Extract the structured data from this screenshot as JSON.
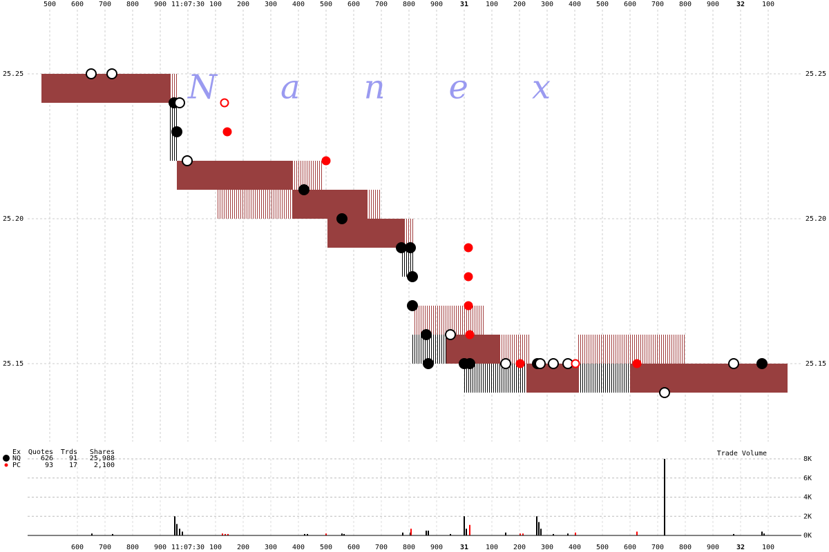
{
  "chart_data": [
    {
      "type": "quotes",
      "watermark": "Nanex",
      "grid": true,
      "xlim": [
        -0.58,
        2.22
      ],
      "ylim": [
        25.12,
        25.27
      ],
      "xticks": [
        {
          "value": -0.5,
          "label": "500"
        },
        {
          "value": -0.4,
          "label": "600"
        },
        {
          "value": -0.3,
          "label": "700"
        },
        {
          "value": -0.2,
          "label": "800"
        },
        {
          "value": -0.1,
          "label": "900"
        },
        {
          "value": 0,
          "label": "11:07:30"
        },
        {
          "value": 0.1,
          "label": "100"
        },
        {
          "value": 0.2,
          "label": "200"
        },
        {
          "value": 0.3,
          "label": "300"
        },
        {
          "value": 0.4,
          "label": "400"
        },
        {
          "value": 0.5,
          "label": "500"
        },
        {
          "value": 0.6,
          "label": "600"
        },
        {
          "value": 0.7,
          "label": "700"
        },
        {
          "value": 0.8,
          "label": "800"
        },
        {
          "value": 0.9,
          "label": "900"
        },
        {
          "value": 1,
          "label": "31"
        },
        {
          "value": 1.1,
          "label": "100"
        },
        {
          "value": 1.2,
          "label": "200"
        },
        {
          "value": 1.3,
          "label": "300"
        },
        {
          "value": 1.4,
          "label": "400"
        },
        {
          "value": 1.5,
          "label": "500"
        },
        {
          "value": 1.6,
          "label": "600"
        },
        {
          "value": 1.7,
          "label": "700"
        },
        {
          "value": 1.8,
          "label": "800"
        },
        {
          "value": 1.9,
          "label": "900"
        },
        {
          "value": 2,
          "label": "32"
        },
        {
          "value": 2.1,
          "label": "100"
        }
      ],
      "yticks": [
        25.15,
        {
          "value": 25.2,
          "label": "25.20"
        },
        25.25
      ],
      "bands": [
        {
          "style": "solid",
          "color": "#983f3f",
          "x": [
            -0.53,
            -0.065
          ],
          "y": [
            25.24,
            25.25
          ]
        },
        {
          "style": "hatched",
          "color": "#a03c3c",
          "x": [
            -0.065,
            -0.04
          ],
          "y": [
            25.24,
            25.25
          ]
        },
        {
          "style": "hatched",
          "color": "#000000",
          "x": [
            -0.065,
            -0.04
          ],
          "y": [
            25.22,
            25.24
          ]
        },
        {
          "style": "solid",
          "color": "#983f3f",
          "x": [
            -0.04,
            0.3775
          ],
          "y": [
            25.21,
            25.22
          ]
        },
        {
          "style": "hatched",
          "color": "#a03c3c",
          "x": [
            0.3775,
            0.49
          ],
          "y": [
            25.21,
            25.22
          ]
        },
        {
          "style": "hatched",
          "color": "#a03c3c",
          "x": [
            0.1075,
            0.3775
          ],
          "y": [
            25.2,
            25.21
          ]
        },
        {
          "style": "solid",
          "color": "#983f3f",
          "x": [
            0.3775,
            0.6475
          ],
          "y": [
            25.2,
            25.21
          ]
        },
        {
          "style": "hatched",
          "color": "#a03c3c",
          "x": [
            0.6475,
            0.7
          ],
          "y": [
            25.2,
            25.21
          ]
        },
        {
          "style": "solid",
          "color": "#983f3f",
          "x": [
            0.505,
            0.785
          ],
          "y": [
            25.19,
            25.2
          ]
        },
        {
          "style": "hatched",
          "color": "#a03c3c",
          "x": [
            0.785,
            0.82
          ],
          "y": [
            25.19,
            25.2
          ]
        },
        {
          "style": "hatched",
          "color": "#000000",
          "x": [
            0.775,
            0.82
          ],
          "y": [
            25.18,
            25.19
          ]
        },
        {
          "style": "hatched",
          "color": "#a03c3c",
          "x": [
            0.82,
            1.07
          ],
          "y": [
            25.16,
            25.17
          ]
        },
        {
          "style": "hatched",
          "color": "#000000",
          "x": [
            0.8125,
            0.935
          ],
          "y": [
            25.15,
            25.16
          ]
        },
        {
          "style": "solid",
          "color": "#983f3f",
          "x": [
            0.935,
            1.1275
          ],
          "y": [
            25.15,
            25.16
          ]
        },
        {
          "style": "hatched",
          "color": "#a03c3c",
          "x": [
            1.1275,
            1.2375
          ],
          "y": [
            25.15,
            25.16
          ]
        },
        {
          "style": "hatched",
          "color": "#000000",
          "x": [
            1.0,
            1.225
          ],
          "y": [
            25.14,
            25.15
          ]
        },
        {
          "style": "solid",
          "color": "#983f3f",
          "x": [
            1.225,
            1.415
          ],
          "y": [
            25.14,
            25.15
          ]
        },
        {
          "style": "hatched",
          "color": "#000000",
          "x": [
            1.415,
            1.6
          ],
          "y": [
            25.14,
            25.15
          ]
        },
        {
          "style": "hatched",
          "color": "#a03c3c",
          "x": [
            1.41,
            1.8
          ],
          "y": [
            25.15,
            25.16
          ]
        },
        {
          "style": "solid",
          "color": "#983f3f",
          "x": [
            1.6,
            2.17
          ],
          "y": [
            25.14,
            25.15
          ]
        }
      ],
      "trades": [
        {
          "x": -0.35,
          "y": 25.25,
          "color": "#000000",
          "filled": false
        },
        {
          "x": -0.275,
          "y": 25.25,
          "color": "#000000",
          "filled": false
        },
        {
          "x": -0.05,
          "y": 25.24,
          "color": "#000000",
          "filled": true
        },
        {
          "x": -0.03,
          "y": 25.24,
          "color": "#000000",
          "filled": false
        },
        {
          "x": -0.04,
          "y": 25.23,
          "color": "#000000",
          "filled": true
        },
        {
          "x": -0.0025,
          "y": 25.22,
          "color": "#000000",
          "filled": false
        },
        {
          "x": 0.1325,
          "y": 25.24,
          "color": "#ff0000",
          "filled": false
        },
        {
          "x": 0.1425,
          "y": 25.23,
          "color": "#ff0000",
          "filled": true
        },
        {
          "x": 0.42,
          "y": 25.21,
          "color": "#000000",
          "filled": true
        },
        {
          "x": 0.5,
          "y": 25.22,
          "color": "#ff0000",
          "filled": true
        },
        {
          "x": 0.5575,
          "y": 25.2,
          "color": "#000000",
          "filled": true
        },
        {
          "x": 0.7725,
          "y": 25.19,
          "color": "#000000",
          "filled": true
        },
        {
          "x": 0.805,
          "y": 25.19,
          "color": "#000000",
          "filled": true
        },
        {
          "x": 0.8125,
          "y": 25.18,
          "color": "#000000",
          "filled": true
        },
        {
          "x": 0.8125,
          "y": 25.17,
          "color": "#000000",
          "filled": true
        },
        {
          "x": 0.8625,
          "y": 25.16,
          "color": "#000000",
          "filled": true
        },
        {
          "x": 0.87,
          "y": 25.15,
          "color": "#000000",
          "filled": true
        },
        {
          "x": 0.95,
          "y": 25.16,
          "color": "#000000",
          "filled": false
        },
        {
          "x": 1.0,
          "y": 25.15,
          "color": "#000000",
          "filled": true
        },
        {
          "x": 1.02,
          "y": 25.15,
          "color": "#000000",
          "filled": true
        },
        {
          "x": 1.015,
          "y": 25.19,
          "color": "#ff0000",
          "filled": true
        },
        {
          "x": 1.015,
          "y": 25.18,
          "color": "#ff0000",
          "filled": true
        },
        {
          "x": 1.015,
          "y": 25.17,
          "color": "#ff0000",
          "filled": true
        },
        {
          "x": 1.02,
          "y": 25.16,
          "color": "#ff0000",
          "filled": true
        },
        {
          "x": 1.15,
          "y": 25.15,
          "color": "#000000",
          "filled": false
        },
        {
          "x": 1.2025,
          "y": 25.15,
          "color": "#ff0000",
          "filled": true
        },
        {
          "x": 1.265,
          "y": 25.15,
          "color": "#000000",
          "filled": true
        },
        {
          "x": 1.275,
          "y": 25.15,
          "color": "#000000",
          "filled": false
        },
        {
          "x": 1.3225,
          "y": 25.15,
          "color": "#000000",
          "filled": false
        },
        {
          "x": 1.375,
          "y": 25.15,
          "color": "#000000",
          "filled": false
        },
        {
          "x": 1.4025,
          "y": 25.15,
          "color": "#ff0000",
          "filled": false
        },
        {
          "x": 1.625,
          "y": 25.15,
          "color": "#ff0000",
          "filled": true
        },
        {
          "x": 1.725,
          "y": 25.14,
          "color": "#000000",
          "filled": false
        },
        {
          "x": 1.975,
          "y": 25.15,
          "color": "#000000",
          "filled": false
        },
        {
          "x": 2.0775,
          "y": 25.15,
          "color": "#000000",
          "filled": true
        }
      ]
    },
    {
      "type": "bar",
      "title": "Trade Volume",
      "grid": true,
      "xlim": [
        -0.58,
        2.22
      ],
      "ylim": [
        0,
        8000
      ],
      "xticks": [
        {
          "value": -0.4,
          "label": "600"
        },
        {
          "value": -0.3,
          "label": "700"
        },
        {
          "value": -0.2,
          "label": "800"
        },
        {
          "value": -0.1,
          "label": "900"
        },
        {
          "value": 0,
          "label": "11:07:30"
        },
        {
          "value": 0.1,
          "label": "100"
        },
        {
          "value": 0.2,
          "label": "200"
        },
        {
          "value": 0.3,
          "label": "300"
        },
        {
          "value": 0.4,
          "label": "400"
        },
        {
          "value": 0.5,
          "label": "500"
        },
        {
          "value": 0.6,
          "label": "600"
        },
        {
          "value": 0.7,
          "label": "700"
        },
        {
          "value": 0.8,
          "label": "800"
        },
        {
          "value": 0.9,
          "label": "900"
        },
        {
          "value": 1,
          "label": "31"
        },
        {
          "value": 1.1,
          "label": "100"
        },
        {
          "value": 1.2,
          "label": "200"
        },
        {
          "value": 1.3,
          "label": "300"
        },
        {
          "value": 1.4,
          "label": "400"
        },
        {
          "value": 1.5,
          "label": "500"
        },
        {
          "value": 1.6,
          "label": "600"
        },
        {
          "value": 1.7,
          "label": "700"
        },
        {
          "value": 1.8,
          "label": "800"
        },
        {
          "value": 1.9,
          "label": "900"
        },
        {
          "value": 2,
          "label": "32"
        },
        {
          "value": 2.1,
          "label": "100"
        }
      ],
      "yticks": [
        {
          "value": 0,
          "label": "0K"
        },
        {
          "value": 2000,
          "label": "2K"
        },
        {
          "value": 4000,
          "label": "4K"
        },
        {
          "value": 6000,
          "label": "6K"
        },
        {
          "value": 8000,
          "label": "8K"
        }
      ],
      "series": [
        {
          "color": "#000000",
          "x": [
            -0.3475,
            -0.2725,
            -0.0475,
            -0.04,
            -0.03,
            -0.02,
            0.4225,
            0.4325,
            0.5575,
            0.565,
            0.7775,
            0.805,
            0.8625,
            0.87,
            0.95,
            1.0,
            1.0075,
            1.15,
            1.2625,
            1.27,
            1.2775,
            1.3225,
            1.375,
            1.725,
            1.975,
            2.0775,
            2.085
          ],
          "values": [
            200,
            150,
            2000,
            1200,
            700,
            400,
            150,
            150,
            200,
            150,
            300,
            300,
            500,
            500,
            150,
            2000,
            700,
            300,
            2000,
            1400,
            700,
            150,
            200,
            8000,
            150,
            400,
            200
          ]
        },
        {
          "color": "#ff0000",
          "x": [
            0.125,
            0.135,
            0.145,
            0.5,
            0.8075,
            1.02,
            1.2025,
            1.2125,
            1.4025,
            1.625
          ],
          "values": [
            200,
            150,
            150,
            200,
            700,
            1100,
            200,
            200,
            300,
            400
          ]
        }
      ]
    }
  ],
  "legend_table": {
    "header": [
      "Ex",
      "Quotes",
      "Trds",
      "Shares"
    ],
    "rows": [
      {
        "color": "#000000",
        "cells": [
          "NQ",
          "626",
          "91",
          "25,988"
        ]
      },
      {
        "color": "#ff0000",
        "cells": [
          "PC",
          "93",
          "17",
          "2,100"
        ]
      }
    ]
  }
}
